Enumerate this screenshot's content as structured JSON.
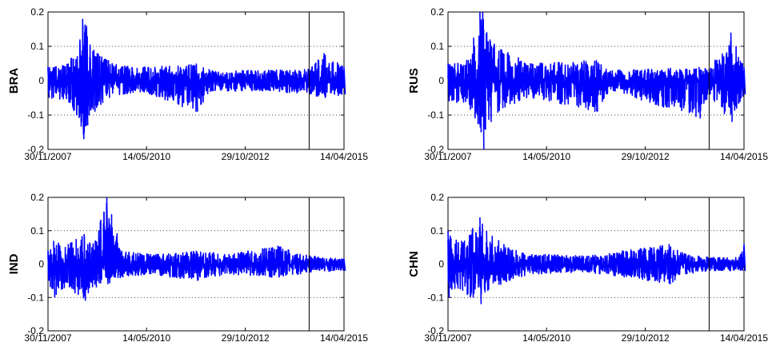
{
  "chart_data": [
    {
      "type": "line",
      "ylabel": "BRA",
      "ylim": [
        -0.2,
        0.2
      ],
      "yticks": [
        -0.2,
        -0.1,
        0,
        0.1,
        0.2
      ],
      "ytick_labels": [
        "-0.2",
        "-0.1",
        "0",
        "0.1",
        "0.2"
      ],
      "xlim": [
        "30/11/2007",
        "14/04/2015"
      ],
      "xticks": [
        "30/11/2007",
        "14/05/2010",
        "29/10/2012",
        "14/04/2015"
      ],
      "vline": "01/06/2014",
      "grid": "y-dotted",
      "series_color": "#0000ff",
      "envelope": [
        {
          "x": "30/11/2007",
          "high": 0.04,
          "low": -0.05
        },
        {
          "x": "01/06/2008",
          "high": 0.05,
          "low": -0.06
        },
        {
          "x": "15/09/2008",
          "high": 0.12,
          "low": -0.12
        },
        {
          "x": "10/10/2008",
          "high": 0.18,
          "low": -0.17
        },
        {
          "x": "15/11/2008",
          "high": 0.16,
          "low": -0.13
        },
        {
          "x": "20/01/2009",
          "high": 0.09,
          "low": -0.09
        },
        {
          "x": "01/06/2009",
          "high": 0.06,
          "low": -0.05
        },
        {
          "x": "01/01/2010",
          "high": 0.04,
          "low": -0.035
        },
        {
          "x": "01/06/2010",
          "high": 0.04,
          "low": -0.04
        },
        {
          "x": "10/08/2011",
          "high": 0.05,
          "low": -0.09
        },
        {
          "x": "01/01/2012",
          "high": 0.03,
          "low": -0.03
        },
        {
          "x": "01/06/2013",
          "high": 0.03,
          "low": -0.03
        },
        {
          "x": "01/06/2014",
          "high": 0.035,
          "low": -0.04
        },
        {
          "x": "15/10/2014",
          "high": 0.08,
          "low": -0.05
        },
        {
          "x": "14/04/2015",
          "high": 0.04,
          "low": -0.04
        }
      ]
    },
    {
      "type": "line",
      "ylabel": "RUS",
      "ylim": [
        -0.2,
        0.2
      ],
      "yticks": [
        -0.2,
        -0.1,
        0,
        0.1,
        0.2
      ],
      "ytick_labels": [
        "-0.2",
        "-0.1",
        "0",
        "0.1",
        "0.2"
      ],
      "xlim": [
        "30/11/2007",
        "14/04/2015"
      ],
      "xticks": [
        "30/11/2007",
        "14/05/2010",
        "29/10/2012",
        "14/04/2015"
      ],
      "vline": "01/06/2014",
      "grid": "y-dotted",
      "series_color": "#0000ff",
      "envelope": [
        {
          "x": "30/11/2007",
          "high": 0.05,
          "low": -0.06
        },
        {
          "x": "01/06/2008",
          "high": 0.06,
          "low": -0.07
        },
        {
          "x": "15/09/2008",
          "high": 0.2,
          "low": -0.15
        },
        {
          "x": "10/10/2008",
          "high": 0.2,
          "low": -0.2
        },
        {
          "x": "15/12/2008",
          "high": 0.12,
          "low": -0.12
        },
        {
          "x": "01/04/2009",
          "high": 0.09,
          "low": -0.08
        },
        {
          "x": "01/01/2010",
          "high": 0.05,
          "low": -0.05
        },
        {
          "x": "10/08/2011",
          "high": 0.06,
          "low": -0.09
        },
        {
          "x": "01/01/2012",
          "high": 0.03,
          "low": -0.03
        },
        {
          "x": "01/03/2014",
          "high": 0.04,
          "low": -0.11
        },
        {
          "x": "01/06/2014",
          "high": 0.035,
          "low": -0.04
        },
        {
          "x": "16/12/2014",
          "high": 0.14,
          "low": -0.12
        },
        {
          "x": "14/04/2015",
          "high": 0.04,
          "low": -0.04
        }
      ]
    },
    {
      "type": "line",
      "ylabel": "IND",
      "ylim": [
        -0.2,
        0.2
      ],
      "yticks": [
        -0.2,
        -0.1,
        0,
        0.1,
        0.2
      ],
      "ytick_labels": [
        "-0.2",
        "-0.1",
        "0",
        "0.1",
        "0.2"
      ],
      "xlim": [
        "30/11/2007",
        "14/04/2015"
      ],
      "xticks": [
        "30/11/2007",
        "14/05/2010",
        "29/10/2012",
        "14/04/2015"
      ],
      "vline": "01/06/2014",
      "grid": "y-dotted",
      "series_color": "#0000ff",
      "envelope": [
        {
          "x": "30/11/2007",
          "high": 0.04,
          "low": -0.05
        },
        {
          "x": "20/01/2008",
          "high": 0.07,
          "low": -0.1
        },
        {
          "x": "01/06/2008",
          "high": 0.06,
          "low": -0.07
        },
        {
          "x": "24/10/2008",
          "high": 0.09,
          "low": -0.11
        },
        {
          "x": "01/02/2009",
          "high": 0.07,
          "low": -0.07
        },
        {
          "x": "18/05/2009",
          "high": 0.2,
          "low": -0.06
        },
        {
          "x": "01/10/2009",
          "high": 0.04,
          "low": -0.04
        },
        {
          "x": "01/06/2010",
          "high": 0.03,
          "low": -0.03
        },
        {
          "x": "10/08/2011",
          "high": 0.04,
          "low": -0.05
        },
        {
          "x": "01/06/2012",
          "high": 0.03,
          "low": -0.03
        },
        {
          "x": "20/08/2013",
          "high": 0.055,
          "low": -0.04
        },
        {
          "x": "01/06/2014",
          "high": 0.025,
          "low": -0.025
        },
        {
          "x": "14/04/2015",
          "high": 0.015,
          "low": -0.02
        }
      ]
    },
    {
      "type": "line",
      "ylabel": "CHN",
      "ylim": [
        -0.2,
        0.2
      ],
      "yticks": [
        -0.2,
        -0.1,
        0,
        0.1,
        0.2
      ],
      "ytick_labels": [
        "-0.2",
        "-0.1",
        "0",
        "0.1",
        "0.2"
      ],
      "xlim": [
        "30/11/2007",
        "14/04/2015"
      ],
      "xticks": [
        "30/11/2007",
        "14/05/2010",
        "29/10/2012",
        "14/04/2015"
      ],
      "vline": "01/06/2014",
      "grid": "y-dotted",
      "series_color": "#0000ff",
      "envelope": [
        {
          "x": "30/11/2007",
          "high": 0.1,
          "low": -0.1
        },
        {
          "x": "01/04/2008",
          "high": 0.07,
          "low": -0.08
        },
        {
          "x": "15/09/2008",
          "high": 0.14,
          "low": -0.12
        },
        {
          "x": "15/11/2008",
          "high": 0.1,
          "low": -0.08
        },
        {
          "x": "01/06/2009",
          "high": 0.05,
          "low": -0.05
        },
        {
          "x": "01/01/2010",
          "high": 0.03,
          "low": -0.03
        },
        {
          "x": "01/06/2011",
          "high": 0.025,
          "low": -0.025
        },
        {
          "x": "01/06/2013",
          "high": 0.06,
          "low": -0.06
        },
        {
          "x": "01/11/2013",
          "high": 0.03,
          "low": -0.03
        },
        {
          "x": "01/06/2014",
          "high": 0.02,
          "low": -0.02
        },
        {
          "x": "01/03/2015",
          "high": 0.02,
          "low": -0.02
        },
        {
          "x": "14/04/2015",
          "high": 0.06,
          "low": -0.02
        }
      ]
    }
  ]
}
